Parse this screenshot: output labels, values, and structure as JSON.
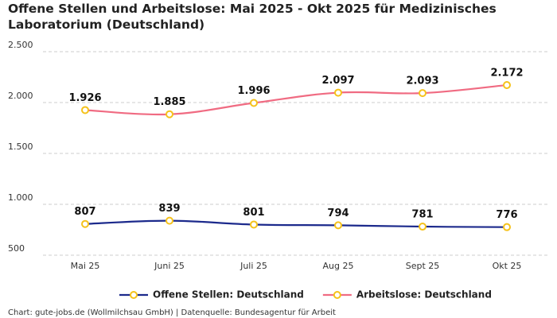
{
  "chart_data": {
    "type": "line",
    "title": "Offene Stellen und Arbeitslose: Mai 2025 - Okt 2025 für Medizinisches Laboratorium (Deutschland)",
    "categories": [
      "Mai 25",
      "Juni 25",
      "Juli 25",
      "Aug 25",
      "Sept 25",
      "Okt 25"
    ],
    "series": [
      {
        "name": "Offene Stellen: Deutschland",
        "color": "#1c2a8c",
        "values": [
          807,
          839,
          801,
          794,
          781,
          776
        ],
        "value_labels": [
          "807",
          "839",
          "801",
          "794",
          "781",
          "776"
        ]
      },
      {
        "name": "Arbeitslose: Deutschland",
        "color": "#f06b82",
        "values": [
          1926,
          1885,
          1996,
          2097,
          2093,
          2172
        ],
        "value_labels": [
          "1.926",
          "1.885",
          "1.996",
          "2.097",
          "2.093",
          "2.172"
        ]
      }
    ],
    "marker_color": "#f5c21b",
    "ylim": [
      500,
      2500
    ],
    "yticks": [
      {
        "value": 500,
        "label": "500"
      },
      {
        "value": 1000,
        "label": "1.000"
      },
      {
        "value": 1500,
        "label": "1.500"
      },
      {
        "value": 2000,
        "label": "2.000"
      },
      {
        "value": 2500,
        "label": "2.500"
      }
    ],
    "grid": true,
    "legend": "bottom",
    "source": "Chart: gute-jobs.de (Wollmilchsau GmbH) | Datenquelle: Bundesagentur für Arbeit"
  }
}
